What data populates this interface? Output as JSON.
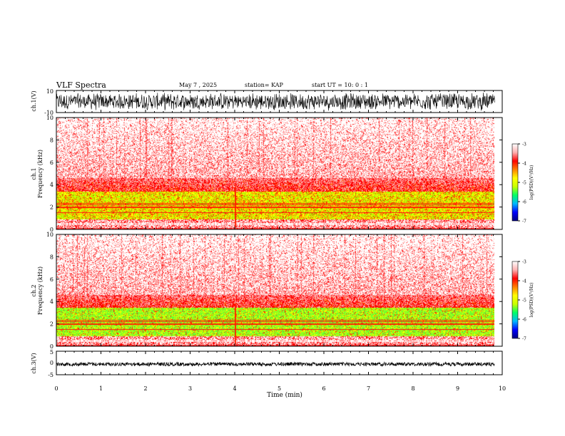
{
  "header": {
    "title": "VLF Spectra",
    "date": "May 7 , 2025",
    "station": "station= KAP",
    "start": "start UT = 10: 0 : 1"
  },
  "colors": {
    "spectrogram_ramp": [
      "#000080",
      "#0000ff",
      "#00b8ff",
      "#00ff66",
      "#c8ff00",
      "#ffff00",
      "#ff8000",
      "#ff0000",
      "#ffb0b0",
      "#ffffff"
    ]
  },
  "chart_data": [
    {
      "type": "line",
      "name": "ch1-waveform",
      "ylabel": "ch.1(V)",
      "y_ticks": [
        "10",
        "-10"
      ],
      "ylim": [
        -10,
        10
      ],
      "xlim": [
        0,
        10
      ],
      "description_values": {
        "min": -10,
        "max": 10
      }
    },
    {
      "type": "heatmap",
      "name": "ch1-spectrogram",
      "ylabel": "ch.1\nFrequency (kHz)",
      "ylabel_top": "ch.1",
      "ylabel_bottom": "Frequency (kHz)",
      "y_ticks": [
        "0",
        "2",
        "4",
        "6",
        "8",
        "10"
      ],
      "ylim": [
        0,
        10
      ],
      "xlim": [
        0,
        9.83
      ],
      "bands": [
        {
          "from": 0,
          "to": 0.3,
          "level": "red"
        },
        {
          "from": 0.3,
          "to": 0.9,
          "level": "mixed"
        },
        {
          "from": 0.9,
          "to": 3.4,
          "level": "yellow-green"
        },
        {
          "from": 3.4,
          "to": 4.6,
          "level": "red"
        },
        {
          "from": 4.6,
          "to": 10,
          "level": "pink"
        }
      ],
      "colorbar": {
        "label": "log(PSD)(V²/Hz)",
        "ticks": [
          "-3",
          "-4",
          "-5",
          "-6",
          "-7"
        ],
        "range": [
          -7,
          -3
        ]
      }
    },
    {
      "type": "heatmap",
      "name": "ch2-spectrogram",
      "ylabel_top": "ch.2",
      "ylabel_bottom": "Frequency (kHz)",
      "y_ticks": [
        "0",
        "2",
        "4",
        "6",
        "8",
        "10"
      ],
      "ylim": [
        0,
        10
      ],
      "xlim": [
        0,
        9.83
      ],
      "bands": [
        {
          "from": 0,
          "to": 0.3,
          "level": "red"
        },
        {
          "from": 0.3,
          "to": 0.9,
          "level": "mixed"
        },
        {
          "from": 0.9,
          "to": 3.5,
          "level": "green-yellow"
        },
        {
          "from": 3.5,
          "to": 4.6,
          "level": "red"
        },
        {
          "from": 4.6,
          "to": 10,
          "level": "pink"
        }
      ],
      "colorbar": {
        "label": "log(PSD)(V²/Hz)",
        "ticks": [
          "-3",
          "-4",
          "-5",
          "-6",
          "-7"
        ],
        "range": [
          -7,
          -3
        ]
      }
    },
    {
      "type": "line",
      "name": "ch3-waveform",
      "ylabel": "ch.3(V)",
      "y_ticks": [
        "5",
        "0",
        "-5"
      ],
      "ylim": [
        -5,
        5
      ],
      "xlim": [
        0,
        10
      ],
      "level": -0.5
    }
  ],
  "x_axis": {
    "label": "Time (min)",
    "ticks": [
      "0",
      "1",
      "2",
      "3",
      "4",
      "5",
      "6",
      "7",
      "8",
      "9",
      "10"
    ],
    "range": [
      0,
      10
    ]
  }
}
